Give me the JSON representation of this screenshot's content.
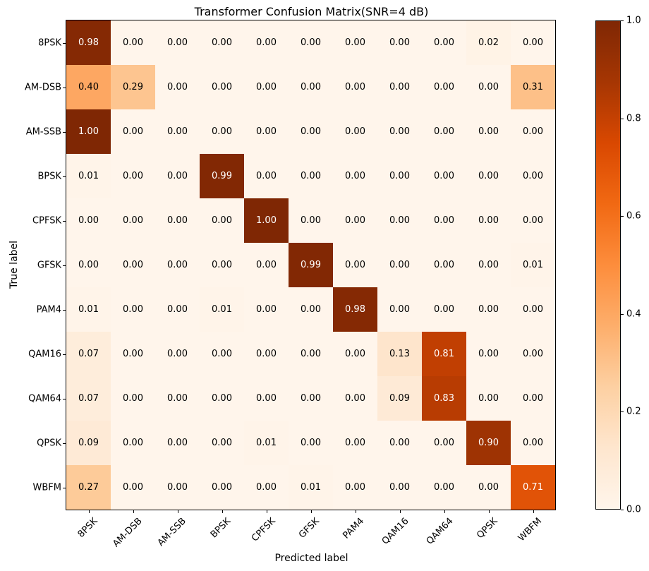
{
  "chart_data": {
    "type": "heatmap",
    "title": "Transformer Confusion Matrix(SNR=4 dB)",
    "xlabel": "Predicted label",
    "ylabel": "True label",
    "x_tick_labels": [
      "8PSK",
      "AM-DSB",
      "AM-SSB",
      "BPSK",
      "CPFSK",
      "GFSK",
      "PAM4",
      "QAM16",
      "QAM64",
      "QPSK",
      "WBFM"
    ],
    "y_tick_labels": [
      "8PSK",
      "AM-DSB",
      "AM-SSB",
      "BPSK",
      "CPFSK",
      "GFSK",
      "PAM4",
      "QAM16",
      "QAM64",
      "QPSK",
      "WBFM"
    ],
    "matrix": [
      [
        0.98,
        0.0,
        0.0,
        0.0,
        0.0,
        0.0,
        0.0,
        0.0,
        0.0,
        0.02,
        0.0
      ],
      [
        0.4,
        0.29,
        0.0,
        0.0,
        0.0,
        0.0,
        0.0,
        0.0,
        0.0,
        0.0,
        0.31
      ],
      [
        1.0,
        0.0,
        0.0,
        0.0,
        0.0,
        0.0,
        0.0,
        0.0,
        0.0,
        0.0,
        0.0
      ],
      [
        0.01,
        0.0,
        0.0,
        0.99,
        0.0,
        0.0,
        0.0,
        0.0,
        0.0,
        0.0,
        0.0
      ],
      [
        0.0,
        0.0,
        0.0,
        0.0,
        1.0,
        0.0,
        0.0,
        0.0,
        0.0,
        0.0,
        0.0
      ],
      [
        0.0,
        0.0,
        0.0,
        0.0,
        0.0,
        0.99,
        0.0,
        0.0,
        0.0,
        0.0,
        0.01
      ],
      [
        0.01,
        0.0,
        0.0,
        0.01,
        0.0,
        0.0,
        0.98,
        0.0,
        0.0,
        0.0,
        0.0
      ],
      [
        0.07,
        0.0,
        0.0,
        0.0,
        0.0,
        0.0,
        0.0,
        0.13,
        0.81,
        0.0,
        0.0
      ],
      [
        0.07,
        0.0,
        0.0,
        0.0,
        0.0,
        0.0,
        0.0,
        0.09,
        0.83,
        0.0,
        0.0
      ],
      [
        0.09,
        0.0,
        0.0,
        0.0,
        0.01,
        0.0,
        0.0,
        0.0,
        0.0,
        0.9,
        0.0
      ],
      [
        0.27,
        0.0,
        0.0,
        0.0,
        0.0,
        0.01,
        0.0,
        0.0,
        0.0,
        0.0,
        0.71
      ]
    ],
    "value_decimals": 2,
    "vmin": 0.0,
    "vmax": 1.0,
    "text_color_threshold": 0.5,
    "text_color_low": "#000000",
    "text_color_high": "#ffffff",
    "grid_lines": false,
    "colormap": {
      "name": "Oranges",
      "anchors": [
        {
          "pos": 0.0,
          "color": "#fff5eb"
        },
        {
          "pos": 0.125,
          "color": "#fee6ce"
        },
        {
          "pos": 0.25,
          "color": "#fdd0a2"
        },
        {
          "pos": 0.375,
          "color": "#fdae6b"
        },
        {
          "pos": 0.5,
          "color": "#fd8d3c"
        },
        {
          "pos": 0.625,
          "color": "#f16913"
        },
        {
          "pos": 0.75,
          "color": "#d94801"
        },
        {
          "pos": 0.875,
          "color": "#a63603"
        },
        {
          "pos": 1.0,
          "color": "#7f2704"
        }
      ]
    },
    "colorbar": {
      "position": "right",
      "ticks": [
        0.0,
        0.2,
        0.4,
        0.6,
        0.8,
        1.0
      ],
      "tick_labels": [
        "0.0",
        "0.2",
        "0.4",
        "0.6",
        "0.8",
        "1.0"
      ]
    },
    "background_color": "#ffffff",
    "spine_color": "#000000"
  }
}
